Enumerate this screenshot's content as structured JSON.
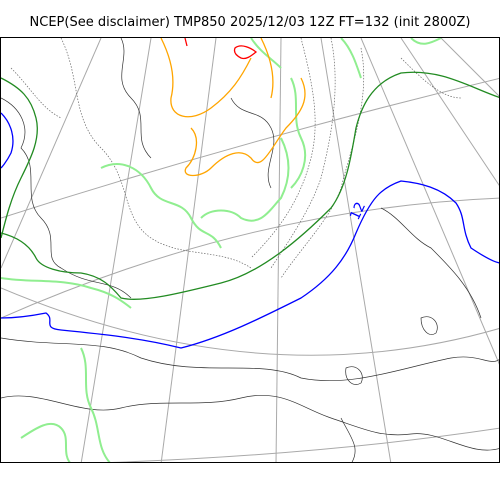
{
  "title": "NCEP(See disclaimer) TMP850 2025/12/03 12Z FT=132 (init 2800Z)",
  "contour_label": "12",
  "colors": {
    "graticule": "#a9a9a9",
    "coastline": "#333333",
    "isotherm_dotted": "#666666",
    "isotherm_green": "#228b22",
    "isotherm_lightgreen": "#90ee90",
    "isotherm_blue": "#0000ff",
    "isotherm_orange": "#ffa500",
    "isotherm_red": "#ff0000"
  }
}
